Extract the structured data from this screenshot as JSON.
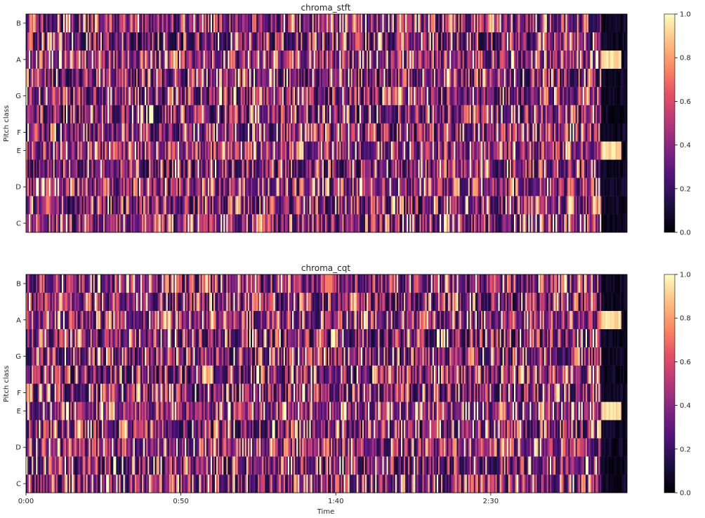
{
  "figure": {
    "colormap": "magma",
    "colorbar_ticks": [
      "0.0",
      "0.2",
      "0.4",
      "0.6",
      "0.8",
      "1.0"
    ]
  },
  "chart_data": [
    {
      "type": "heatmap",
      "title": "chroma_stft",
      "xlabel": "",
      "ylabel": "Pitch class",
      "y_tick_labels": [
        "C",
        "D",
        "E",
        "F",
        "G",
        "A",
        "B"
      ],
      "pitch_classes": [
        "C",
        "C#",
        "D",
        "D#",
        "E",
        "F",
        "F#",
        "G",
        "G#",
        "A",
        "A#",
        "B"
      ],
      "x_range_seconds": [
        0,
        194
      ],
      "value_range": [
        0,
        1
      ],
      "x_tick_labels": [],
      "approx_frames": 420,
      "note": "dense chromagram; per-frame values approximated"
    },
    {
      "type": "heatmap",
      "title": "chroma_cqt",
      "xlabel": "Time",
      "ylabel": "Pitch class",
      "y_tick_labels": [
        "C",
        "D",
        "E",
        "F",
        "G",
        "A",
        "B"
      ],
      "pitch_classes": [
        "C",
        "C#",
        "D",
        "D#",
        "E",
        "F",
        "F#",
        "G",
        "G#",
        "A",
        "A#",
        "B"
      ],
      "x_range_seconds": [
        0,
        194
      ],
      "value_range": [
        0,
        1
      ],
      "x_tick_labels": [
        "0:00",
        "0:50",
        "1:40",
        "2:30"
      ],
      "approx_frames": 420,
      "note": "dense chromagram; per-frame values approximated"
    }
  ]
}
